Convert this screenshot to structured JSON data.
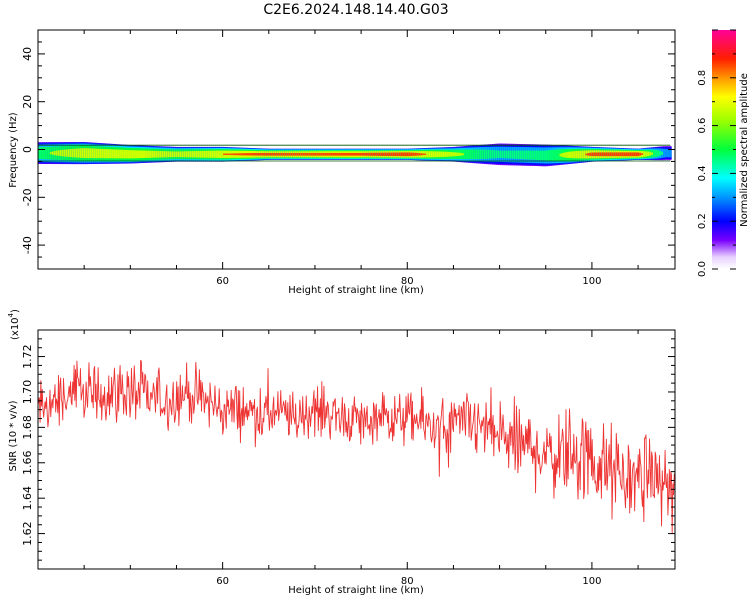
{
  "title": "C2E6.2024.148.14.40.G03",
  "colors": {
    "snr_line": "#ee3333",
    "axis": "#000000",
    "background": "#ffffff"
  },
  "chart_data": [
    {
      "type": "heatmap",
      "panel": "spectrogram",
      "xlabel": "Height of straight line (km)",
      "ylabel": "Frequency (Hz)",
      "xlim": [
        40,
        109
      ],
      "ylim": [
        -50,
        50
      ],
      "x_ticks": [
        60,
        80,
        100
      ],
      "y_ticks": [
        -40,
        -20,
        0,
        20,
        40
      ],
      "grid": false,
      "ridge": {
        "x": [
          40,
          45,
          50,
          55,
          60,
          65,
          70,
          75,
          80,
          85,
          90,
          95,
          100,
          105,
          108
        ],
        "frequency_hz": [
          -1.5,
          -1.5,
          -2,
          -2,
          -2,
          -2,
          -2,
          -2,
          -2,
          -2,
          -2,
          -2.5,
          -2,
          -2,
          -1.5
        ],
        "band_halfwidth_hz": [
          3,
          3,
          2.5,
          2,
          2,
          1.5,
          1.5,
          1.5,
          1.5,
          2,
          3,
          3,
          2,
          1.5,
          2
        ],
        "peak_amplitude": [
          0.6,
          0.8,
          0.8,
          0.75,
          0.85,
          0.9,
          0.9,
          0.9,
          0.95,
          0.7,
          0.5,
          0.55,
          0.9,
          0.95,
          0.4
        ]
      },
      "colorbar": {
        "label": "Normalized spectral amplitude",
        "range": [
          0,
          1
        ],
        "ticks": [
          0.0,
          0.2,
          0.4,
          0.6,
          0.8
        ],
        "tick_labels": [
          "0.0",
          "0.2",
          "0.4",
          "0.6",
          "0.8"
        ],
        "stops": [
          {
            "value": 0.0,
            "color": "#ffffff"
          },
          {
            "value": 0.05,
            "color": "#e8d0ff"
          },
          {
            "value": 0.12,
            "color": "#7a00ff"
          },
          {
            "value": 0.2,
            "color": "#0000ff"
          },
          {
            "value": 0.3,
            "color": "#0096ff"
          },
          {
            "value": 0.38,
            "color": "#00ffff"
          },
          {
            "value": 0.5,
            "color": "#00ff3c"
          },
          {
            "value": 0.62,
            "color": "#9bff00"
          },
          {
            "value": 0.72,
            "color": "#ffff00"
          },
          {
            "value": 0.8,
            "color": "#ff9600"
          },
          {
            "value": 0.88,
            "color": "#ff1e00"
          },
          {
            "value": 1.0,
            "color": "#ff0096"
          }
        ]
      }
    },
    {
      "type": "line",
      "panel": "snr",
      "xlabel": "Height of straight line (km)",
      "ylabel": "SNR (10 * v/v)",
      "y_multiplier_label": "(x10",
      "y_multiplier_exp": "4",
      "xlim": [
        40,
        109
      ],
      "ylim": [
        1.6,
        1.735
      ],
      "x_ticks": [
        60,
        80,
        100
      ],
      "y_ticks": [
        1.62,
        1.64,
        1.66,
        1.68,
        1.7,
        1.72
      ],
      "y_tick_labels": [
        "1.62",
        "1.64",
        "1.66",
        "1.68",
        "1.70",
        "1.72"
      ],
      "grid": false,
      "series": [
        {
          "x": [
            40,
            42,
            44,
            46,
            48,
            50,
            52,
            54,
            56,
            58,
            60,
            62,
            64,
            66,
            68,
            70,
            72,
            74,
            76,
            78,
            80,
            82,
            84,
            86,
            88,
            90,
            92,
            94,
            96,
            98,
            100,
            102,
            104,
            106,
            108,
            109
          ],
          "values": [
            1.69,
            1.695,
            1.7,
            1.698,
            1.7,
            1.7,
            1.697,
            1.695,
            1.7,
            1.695,
            1.69,
            1.69,
            1.688,
            1.688,
            1.685,
            1.69,
            1.688,
            1.685,
            1.683,
            1.685,
            1.685,
            1.682,
            1.68,
            1.682,
            1.68,
            1.675,
            1.67,
            1.668,
            1.665,
            1.668,
            1.66,
            1.655,
            1.65,
            1.655,
            1.648,
            1.645
          ],
          "noise_amplitude": [
            0.012,
            0.012,
            0.012,
            0.013,
            0.013,
            0.013,
            0.012,
            0.012,
            0.012,
            0.012,
            0.012,
            0.011,
            0.011,
            0.011,
            0.011,
            0.011,
            0.011,
            0.011,
            0.011,
            0.011,
            0.011,
            0.012,
            0.012,
            0.013,
            0.014,
            0.016,
            0.017,
            0.017,
            0.018,
            0.019,
            0.02,
            0.02,
            0.018,
            0.016,
            0.014,
            0.014
          ]
        }
      ]
    }
  ]
}
